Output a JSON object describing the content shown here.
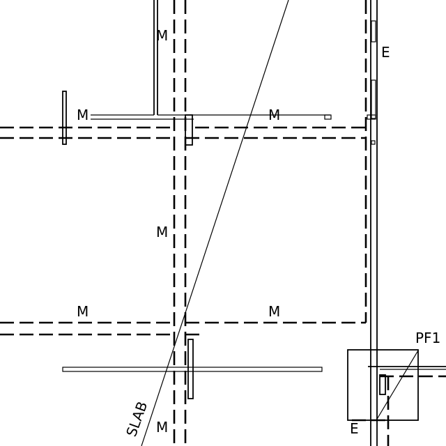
{
  "labels": {
    "m_vertical_top": "M",
    "m_left": "M",
    "m_top_right": "M",
    "e_right": "E",
    "m_vertical_mid": "M",
    "m_lower_left": "M",
    "m_lower_right": "M",
    "pf1": "PF1",
    "slab": "SLAB",
    "m_bottom": "M",
    "e_bottom": "E"
  },
  "colors": {
    "line": "#000000",
    "background": "#ffffff"
  }
}
